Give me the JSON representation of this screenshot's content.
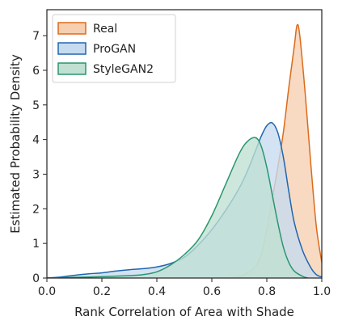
{
  "chart_data": {
    "type": "area",
    "title": "",
    "xlabel": "Rank Correlation of Area with Shade",
    "ylabel": "Estimated Probability Density",
    "xlim": [
      0.0,
      1.0
    ],
    "ylim": [
      0,
      7.75
    ],
    "xticks": [
      0.0,
      0.2,
      0.4,
      0.6,
      0.8,
      1.0
    ],
    "xtick_labels": [
      "0.0",
      "0.2",
      "0.4",
      "0.6",
      "0.8",
      "1.0"
    ],
    "yticks": [
      0,
      1,
      2,
      3,
      4,
      5,
      6,
      7
    ],
    "ytick_labels": [
      "0",
      "1",
      "2",
      "3",
      "4",
      "5",
      "6",
      "7"
    ],
    "grid": false,
    "legend_position": "top-left",
    "series": [
      {
        "name": "Real",
        "color": "#dd6a1a",
        "fill": "#f5cfb0",
        "x": [
          0.0,
          0.6,
          0.66,
          0.7,
          0.73,
          0.76,
          0.78,
          0.8,
          0.82,
          0.84,
          0.86,
          0.88,
          0.9,
          0.91,
          0.92,
          0.94,
          0.96,
          0.98,
          1.0
        ],
        "y": [
          0.0,
          0.0,
          0.01,
          0.05,
          0.15,
          0.35,
          0.7,
          1.4,
          2.3,
          3.2,
          4.2,
          5.5,
          6.7,
          7.3,
          7.0,
          5.3,
          3.3,
          1.5,
          0.45
        ]
      },
      {
        "name": "ProGAN",
        "color": "#2066b0",
        "fill": "#c6dbef",
        "x": [
          0.0,
          0.05,
          0.1,
          0.15,
          0.2,
          0.25,
          0.3,
          0.35,
          0.4,
          0.45,
          0.5,
          0.55,
          0.6,
          0.65,
          0.7,
          0.73,
          0.76,
          0.78,
          0.8,
          0.82,
          0.84,
          0.86,
          0.88,
          0.9,
          0.93,
          0.96,
          0.98,
          1.0
        ],
        "y": [
          0.0,
          0.03,
          0.08,
          0.12,
          0.15,
          0.2,
          0.24,
          0.27,
          0.32,
          0.42,
          0.6,
          0.95,
          1.4,
          1.95,
          2.6,
          3.1,
          3.7,
          4.1,
          4.4,
          4.48,
          4.2,
          3.5,
          2.5,
          1.6,
          0.8,
          0.3,
          0.1,
          0.03
        ]
      },
      {
        "name": "StyleGAN2",
        "color": "#2a9670",
        "fill": "#bfe0d2",
        "x": [
          0.0,
          0.1,
          0.2,
          0.3,
          0.35,
          0.4,
          0.45,
          0.5,
          0.55,
          0.6,
          0.65,
          0.7,
          0.73,
          0.76,
          0.78,
          0.8,
          0.82,
          0.84,
          0.86,
          0.88,
          0.9,
          0.93,
          0.95
        ],
        "y": [
          0.0,
          0.02,
          0.04,
          0.07,
          0.1,
          0.18,
          0.38,
          0.68,
          1.1,
          1.8,
          2.7,
          3.6,
          3.95,
          4.05,
          3.8,
          3.2,
          2.4,
          1.6,
          0.9,
          0.45,
          0.2,
          0.05,
          0.0
        ]
      }
    ]
  }
}
